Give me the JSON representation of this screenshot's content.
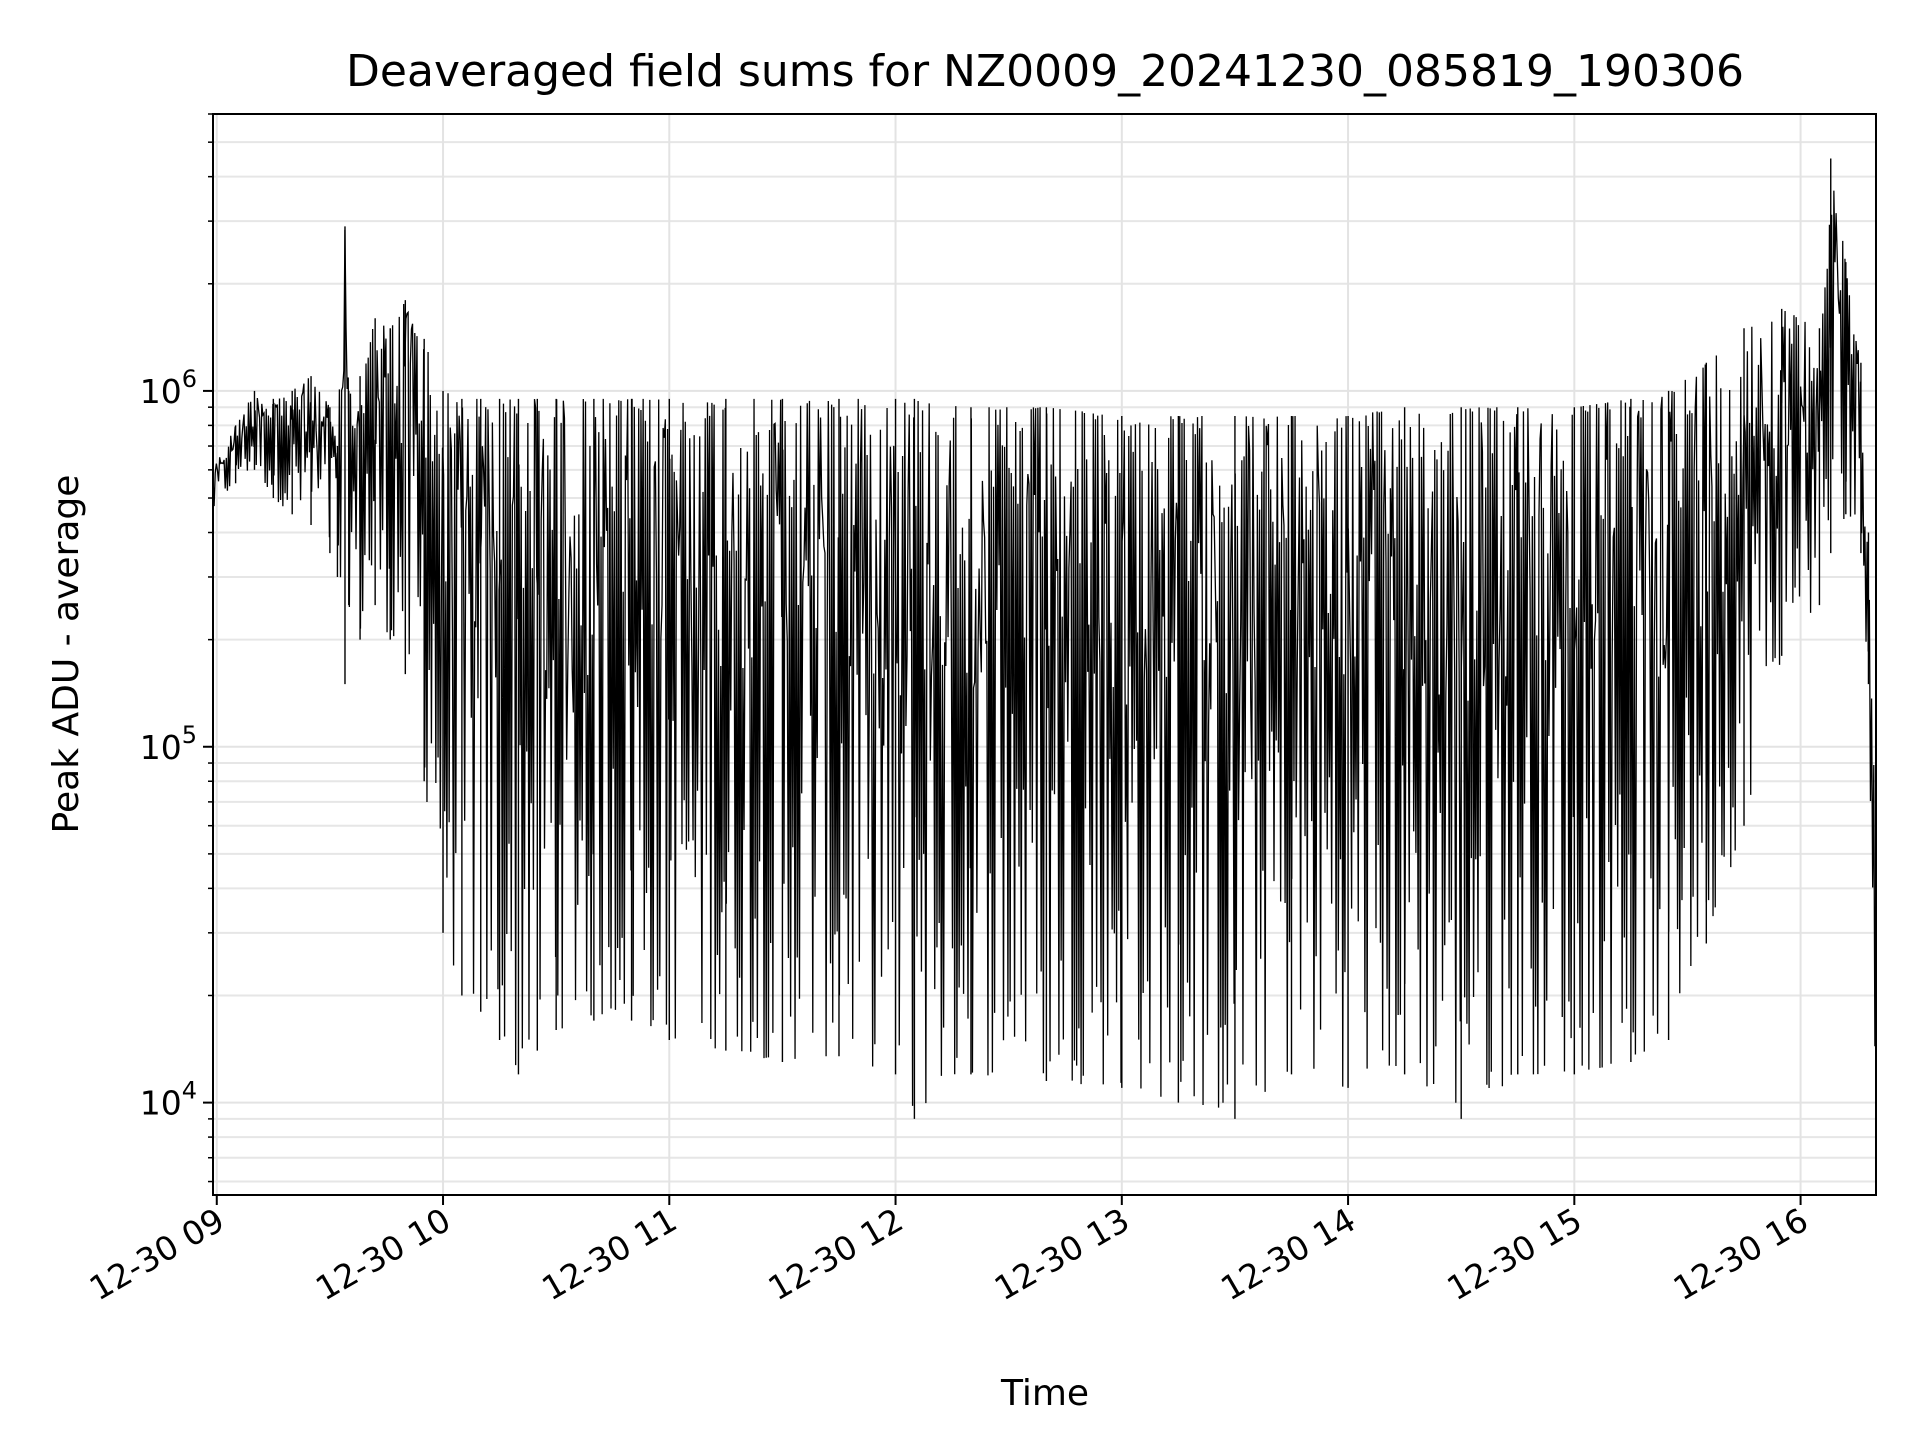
{
  "chart_data": {
    "type": "line",
    "title": "Deaveraged field sums for NZ0009_20241230_085819_190306",
    "xlabel": "Time",
    "ylabel": "Peak ADU - average",
    "yscale": "log",
    "ylim": [
      5500,
      6000000
    ],
    "xlim": [
      "2024-12-30 08:59",
      "2024-12-30 16:20"
    ],
    "grid": true,
    "legend": "none",
    "line_color": "#000000",
    "x_ticks": [
      "12-30 09",
      "12-30 10",
      "12-30 11",
      "12-30 12",
      "12-30 13",
      "12-30 14",
      "12-30 15",
      "12-30 16"
    ],
    "y_ticks": [
      {
        "base": "10",
        "exp": "4",
        "value": 10000
      },
      {
        "base": "10",
        "exp": "5",
        "value": 100000
      },
      {
        "base": "10",
        "exp": "6",
        "value": 1000000
      }
    ],
    "series": [
      {
        "x": [
          "2024-12-30 08:59",
          "2024-12-30 09:05",
          "2024-12-30 09:10",
          "2024-12-30 09:15",
          "2024-12-30 09:20",
          "2024-12-30 09:25",
          "2024-12-30 09:30",
          "2024-12-30 09:32",
          "2024-12-30 09:34",
          "2024-12-30 09:35",
          "2024-12-30 09:38",
          "2024-12-30 09:42",
          "2024-12-30 09:46",
          "2024-12-30 09:50",
          "2024-12-30 09:55",
          "2024-12-30 10:00",
          "2024-12-30 10:05",
          "2024-12-30 10:10",
          "2024-12-30 10:15",
          "2024-12-30 10:20",
          "2024-12-30 10:25",
          "2024-12-30 10:30",
          "2024-12-30 10:40",
          "2024-12-30 10:50",
          "2024-12-30 11:00",
          "2024-12-30 11:15",
          "2024-12-30 11:30",
          "2024-12-30 11:45",
          "2024-12-30 12:00",
          "2024-12-30 12:05",
          "2024-12-30 12:20",
          "2024-12-30 12:40",
          "2024-12-30 13:00",
          "2024-12-30 13:15",
          "2024-12-30 13:30",
          "2024-12-30 13:45",
          "2024-12-30 14:00",
          "2024-12-30 14:15",
          "2024-12-30 14:30",
          "2024-12-30 14:45",
          "2024-12-30 15:00",
          "2024-12-30 15:15",
          "2024-12-30 15:25",
          "2024-12-30 15:35",
          "2024-12-30 15:45",
          "2024-12-30 15:55",
          "2024-12-30 16:05",
          "2024-12-30 16:08",
          "2024-12-30 16:12",
          "2024-12-30 16:16",
          "2024-12-30 16:18",
          "2024-12-30 16:20"
        ],
        "upper": [
          600000,
          800000,
          1000000,
          950000,
          1000000,
          1100000,
          900000,
          700000,
          2900000,
          1000000,
          1100000,
          1600000,
          1500000,
          1800000,
          1400000,
          1000000,
          950000,
          950000,
          950000,
          950000,
          950000,
          950000,
          950000,
          950000,
          950000,
          950000,
          950000,
          950000,
          950000,
          950000,
          900000,
          900000,
          850000,
          850000,
          850000,
          850000,
          850000,
          900000,
          900000,
          900000,
          900000,
          950000,
          1000000,
          1200000,
          1500000,
          1700000,
          1500000,
          4500000,
          2300000,
          1200000,
          400000,
          50000
        ],
        "lower": [
          450000,
          550000,
          600000,
          500000,
          450000,
          420000,
          350000,
          300000,
          150000,
          250000,
          200000,
          250000,
          200000,
          160000,
          80000,
          30000,
          20000,
          18000,
          15000,
          12000,
          14000,
          16000,
          17000,
          17000,
          15000,
          14000,
          13000,
          13500,
          12000,
          9000,
          12000,
          11500,
          11000,
          10000,
          9000,
          12000,
          11000,
          12000,
          9000,
          12000,
          12000,
          13000,
          15000,
          28000,
          60000,
          180000,
          250000,
          350000,
          450000,
          350000,
          150000,
          8000
        ]
      }
    ]
  }
}
